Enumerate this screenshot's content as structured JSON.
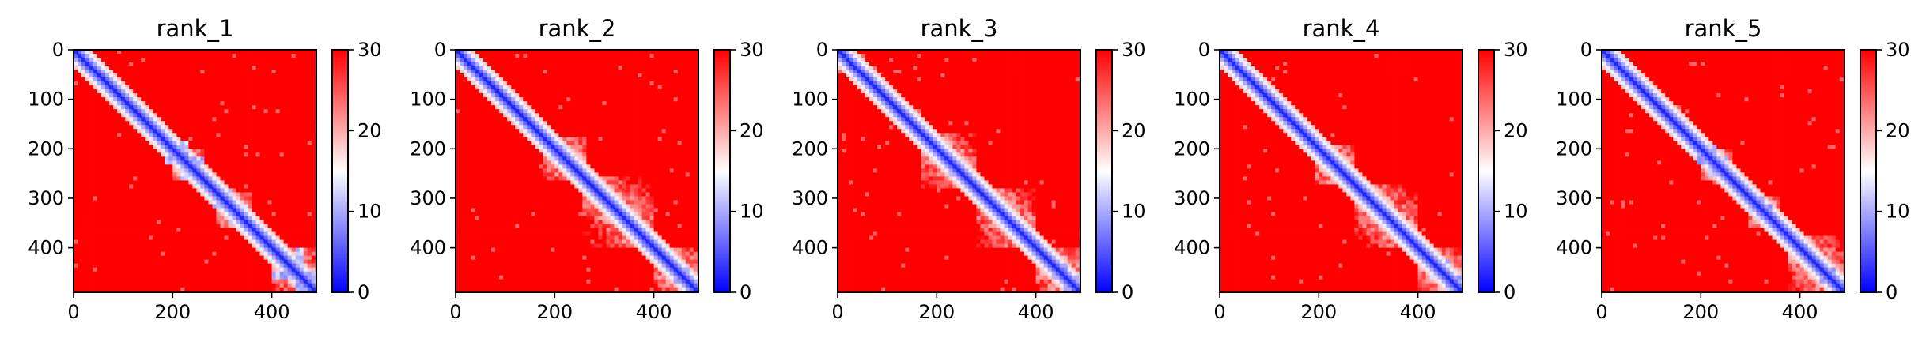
{
  "chart_data": [
    {
      "type": "heatmap",
      "title": "rank_1",
      "matrix_size": 490,
      "xticks": [
        0,
        200,
        400
      ],
      "yticks": [
        0,
        100,
        200,
        300,
        400
      ],
      "colorbar": {
        "min": 0,
        "max": 30,
        "ticks": [
          0,
          10,
          20,
          30
        ],
        "colors": [
          "#0000ff",
          "#ffffff",
          "#ff0000"
        ]
      },
      "domains": [
        [
          200,
          260
        ],
        [
          290,
          360
        ],
        [
          400,
          490
        ]
      ],
      "crosses": [
        [
          225,
          40
        ],
        [
          315,
          35
        ],
        [
          455,
          55
        ]
      ]
    },
    {
      "type": "heatmap",
      "title": "rank_2",
      "matrix_size": 490,
      "xticks": [
        0,
        200,
        400
      ],
      "yticks": [
        0,
        100,
        200,
        300,
        400
      ],
      "colorbar": {
        "min": 0,
        "max": 30,
        "ticks": [
          0,
          10,
          20,
          30
        ],
        "colors": [
          "#0000ff",
          "#ffffff",
          "#ff0000"
        ]
      },
      "domains": [
        [
          180,
          260
        ],
        [
          260,
          400
        ],
        [
          400,
          490
        ]
      ],
      "crosses": [
        [
          215,
          20
        ],
        [
          395,
          20
        ],
        [
          470,
          30
        ]
      ]
    },
    {
      "type": "heatmap",
      "title": "rank_3",
      "matrix_size": 490,
      "xticks": [
        0,
        200,
        400
      ],
      "yticks": [
        0,
        100,
        200,
        300,
        400
      ],
      "colorbar": {
        "min": 0,
        "max": 30,
        "ticks": [
          0,
          10,
          20,
          30
        ],
        "colors": [
          "#0000ff",
          "#ffffff",
          "#ff0000"
        ]
      },
      "domains": [
        [
          170,
          280
        ],
        [
          280,
          400
        ],
        [
          400,
          490
        ]
      ],
      "crosses": [
        [
          230,
          25
        ],
        [
          390,
          20
        ],
        [
          460,
          25
        ]
      ]
    },
    {
      "type": "heatmap",
      "title": "rank_4",
      "matrix_size": 490,
      "xticks": [
        0,
        200,
        400
      ],
      "yticks": [
        0,
        100,
        200,
        300,
        400
      ],
      "colorbar": {
        "min": 0,
        "max": 30,
        "ticks": [
          0,
          10,
          20,
          30
        ],
        "colors": [
          "#0000ff",
          "#ffffff",
          "#ff0000"
        ]
      },
      "domains": [
        [
          190,
          270
        ],
        [
          270,
          400
        ],
        [
          400,
          490
        ]
      ],
      "crosses": [
        [
          230,
          20
        ],
        [
          390,
          15
        ],
        [
          460,
          35
        ]
      ]
    },
    {
      "type": "heatmap",
      "title": "rank_5",
      "matrix_size": 490,
      "xticks": [
        0,
        200,
        400
      ],
      "yticks": [
        0,
        100,
        200,
        300,
        400
      ],
      "colorbar": {
        "min": 0,
        "max": 30,
        "ticks": [
          0,
          10,
          20,
          30
        ],
        "colors": [
          "#0000ff",
          "#ffffff",
          "#ff0000"
        ]
      },
      "domains": [
        [
          200,
          260
        ],
        [
          300,
          360
        ],
        [
          380,
          490
        ]
      ],
      "crosses": [
        [
          225,
          30
        ],
        [
          320,
          25
        ],
        [
          395,
          25
        ],
        [
          470,
          30
        ]
      ]
    }
  ]
}
